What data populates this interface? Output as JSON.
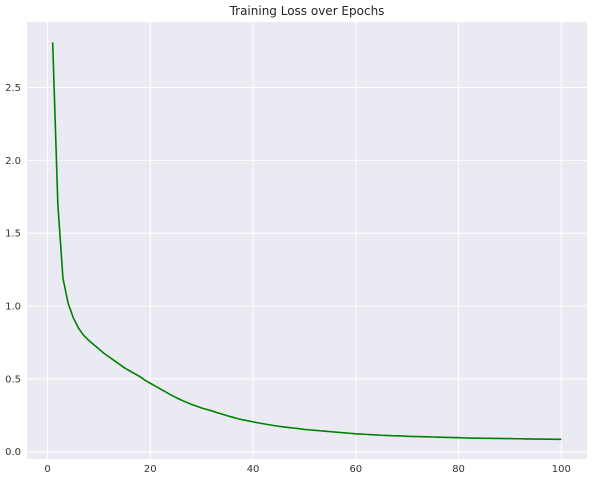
{
  "chart_data": {
    "type": "line",
    "title": "Training Loss over Epochs",
    "xlabel": "",
    "ylabel": "",
    "xlim": [
      -4,
      105
    ],
    "ylim": [
      -0.05,
      2.95
    ],
    "xticks": [
      0,
      20,
      40,
      60,
      80,
      100
    ],
    "yticks": [
      0.0,
      0.5,
      1.0,
      1.5,
      2.0,
      2.5
    ],
    "grid": true,
    "colors": {
      "background": "#eaeaf2",
      "grid": "#ffffff",
      "line": "#008000"
    },
    "series": [
      {
        "color": "#008000",
        "x": [
          1,
          2,
          3,
          4,
          5,
          6,
          7,
          8,
          9,
          10,
          11,
          12,
          13,
          14,
          15,
          16,
          17,
          18,
          19,
          20,
          21,
          22,
          23,
          24,
          25,
          26,
          27,
          28,
          29,
          30,
          31,
          32,
          33,
          34,
          35,
          36,
          37,
          38,
          39,
          40,
          41,
          42,
          43,
          44,
          45,
          46,
          47,
          48,
          49,
          50,
          51,
          52,
          53,
          54,
          55,
          56,
          57,
          58,
          59,
          60,
          61,
          62,
          63,
          64,
          65,
          66,
          67,
          68,
          69,
          70,
          71,
          72,
          73,
          74,
          75,
          76,
          77,
          78,
          79,
          80,
          81,
          82,
          83,
          84,
          85,
          86,
          87,
          88,
          89,
          90,
          91,
          92,
          93,
          94,
          95,
          96,
          97,
          98,
          99,
          100
        ],
        "y": [
          2.81,
          1.7,
          1.19,
          1.02,
          0.92,
          0.85,
          0.8,
          0.765,
          0.735,
          0.705,
          0.675,
          0.65,
          0.625,
          0.6,
          0.575,
          0.555,
          0.535,
          0.515,
          0.49,
          0.47,
          0.45,
          0.43,
          0.41,
          0.39,
          0.372,
          0.355,
          0.34,
          0.325,
          0.313,
          0.3,
          0.29,
          0.28,
          0.268,
          0.258,
          0.247,
          0.237,
          0.227,
          0.219,
          0.212,
          0.205,
          0.198,
          0.192,
          0.186,
          0.18,
          0.175,
          0.17,
          0.166,
          0.162,
          0.158,
          0.153,
          0.15,
          0.147,
          0.144,
          0.141,
          0.138,
          0.135,
          0.132,
          0.129,
          0.126,
          0.123,
          0.121,
          0.119,
          0.117,
          0.115,
          0.113,
          0.112,
          0.11,
          0.109,
          0.108,
          0.106,
          0.105,
          0.104,
          0.103,
          0.102,
          0.101,
          0.1,
          0.099,
          0.098,
          0.097,
          0.096,
          0.095,
          0.094,
          0.093,
          0.093,
          0.092,
          0.092,
          0.091,
          0.091,
          0.09,
          0.09,
          0.089,
          0.089,
          0.088,
          0.088,
          0.087,
          0.087,
          0.086,
          0.086,
          0.085,
          0.085
        ]
      }
    ]
  }
}
